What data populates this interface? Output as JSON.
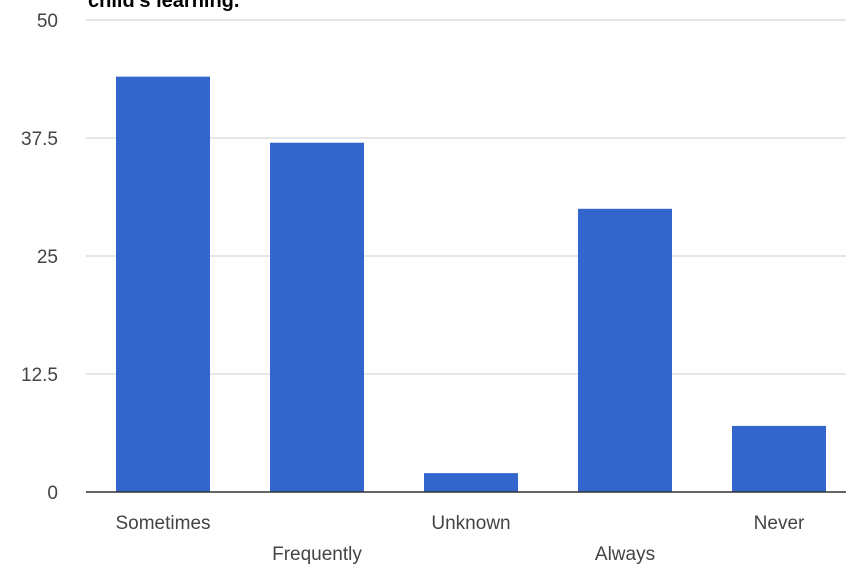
{
  "chart_data": {
    "type": "bar",
    "title": "child's learning.",
    "xlabel": "",
    "ylabel": "",
    "categories": [
      "Sometimes",
      "Frequently",
      "Unknown",
      "Always",
      "Never"
    ],
    "values": [
      44,
      37,
      2,
      30,
      7
    ],
    "ylim": [
      0,
      50
    ],
    "yticks": [
      "0",
      "12.5",
      "25",
      "37.5",
      "50"
    ],
    "grid": true,
    "legend": "none",
    "bar_color": "#3366cc",
    "grid_color": "#cccccc",
    "axis_color": "#333333"
  }
}
